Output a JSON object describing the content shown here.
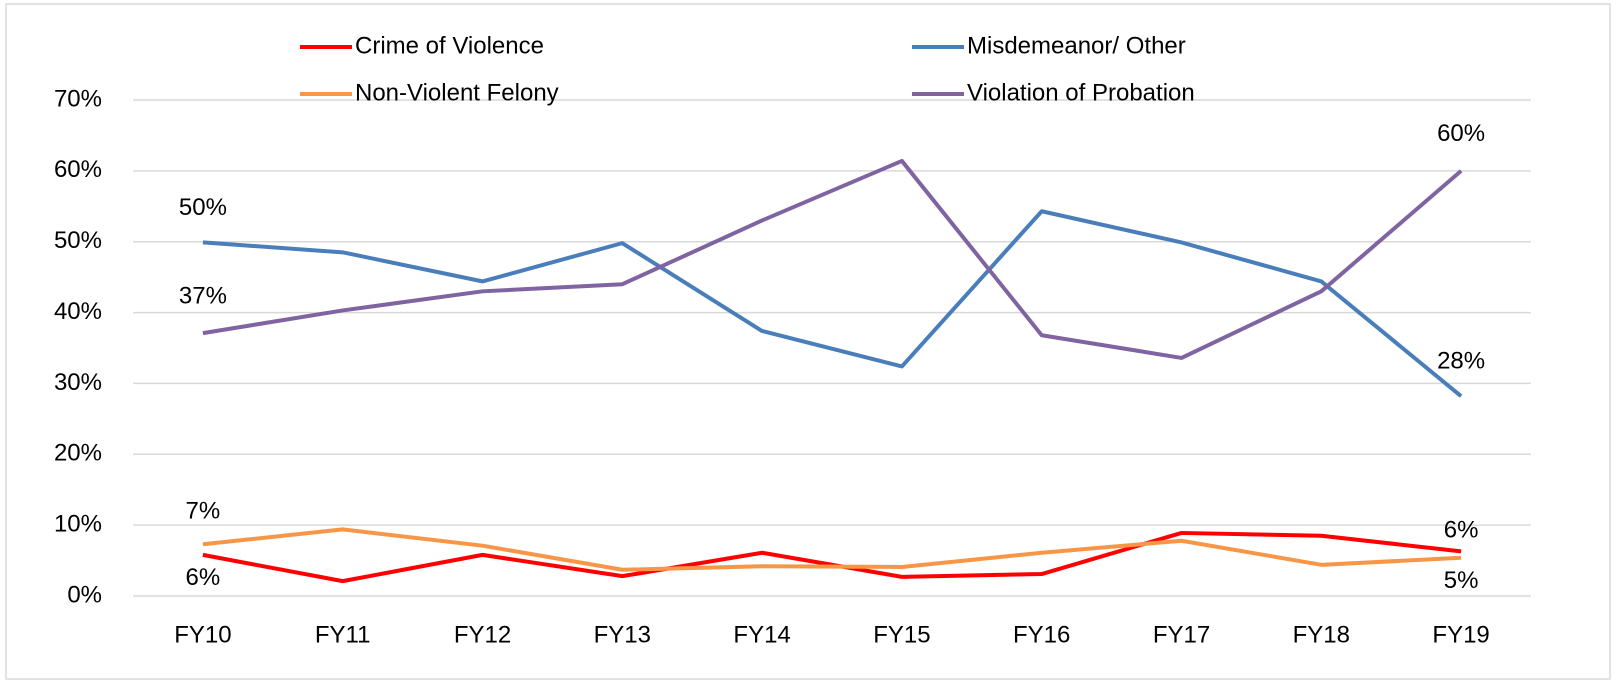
{
  "chart_data": {
    "type": "line",
    "categories": [
      "FY10",
      "FY11",
      "FY12",
      "FY13",
      "FY14",
      "FY15",
      "FY16",
      "FY17",
      "FY18",
      "FY19"
    ],
    "series": [
      {
        "name": "Crime of Violence",
        "color": "#ff0000",
        "values": [
          5.8,
          2.1,
          5.8,
          2.8,
          6.1,
          2.7,
          3.1,
          8.9,
          8.5,
          6.3
        ],
        "value_labels": [
          "6%",
          null,
          null,
          null,
          null,
          null,
          null,
          null,
          null,
          "6%"
        ]
      },
      {
        "name": "Misdemeanor/ Other",
        "color": "#4a7ebb",
        "values": [
          49.9,
          48.5,
          44.4,
          49.8,
          37.4,
          32.4,
          54.3,
          49.9,
          44.4,
          28.2
        ],
        "value_labels": [
          "50%",
          null,
          null,
          null,
          null,
          null,
          null,
          null,
          null,
          "28%"
        ]
      },
      {
        "name": "Non-Violent Felony",
        "color": "#f79646",
        "values": [
          7.3,
          9.4,
          7.1,
          3.7,
          4.2,
          4.1,
          6.1,
          7.8,
          4.4,
          5.4
        ],
        "value_labels": [
          "7%",
          null,
          null,
          null,
          null,
          null,
          null,
          null,
          null,
          "5%"
        ]
      },
      {
        "name": "Violation of Probation",
        "color": "#8064a2",
        "values": [
          37.1,
          40.3,
          43,
          44,
          53,
          61.4,
          36.8,
          33.6,
          43,
          60
        ],
        "value_labels": [
          "37%",
          null,
          null,
          null,
          null,
          null,
          null,
          null,
          null,
          "60%"
        ]
      }
    ],
    "ylim": [
      0,
      70
    ],
    "yticks": [
      {
        "value": 0,
        "label": "0%"
      },
      {
        "value": 10,
        "label": "10%"
      },
      {
        "value": 20,
        "label": "20%"
      },
      {
        "value": 30,
        "label": "30%"
      },
      {
        "value": 40,
        "label": "40%"
      },
      {
        "value": 50,
        "label": "50%"
      },
      {
        "value": 60,
        "label": "60%"
      },
      {
        "value": 70,
        "label": "70%"
      }
    ],
    "grid": true
  }
}
